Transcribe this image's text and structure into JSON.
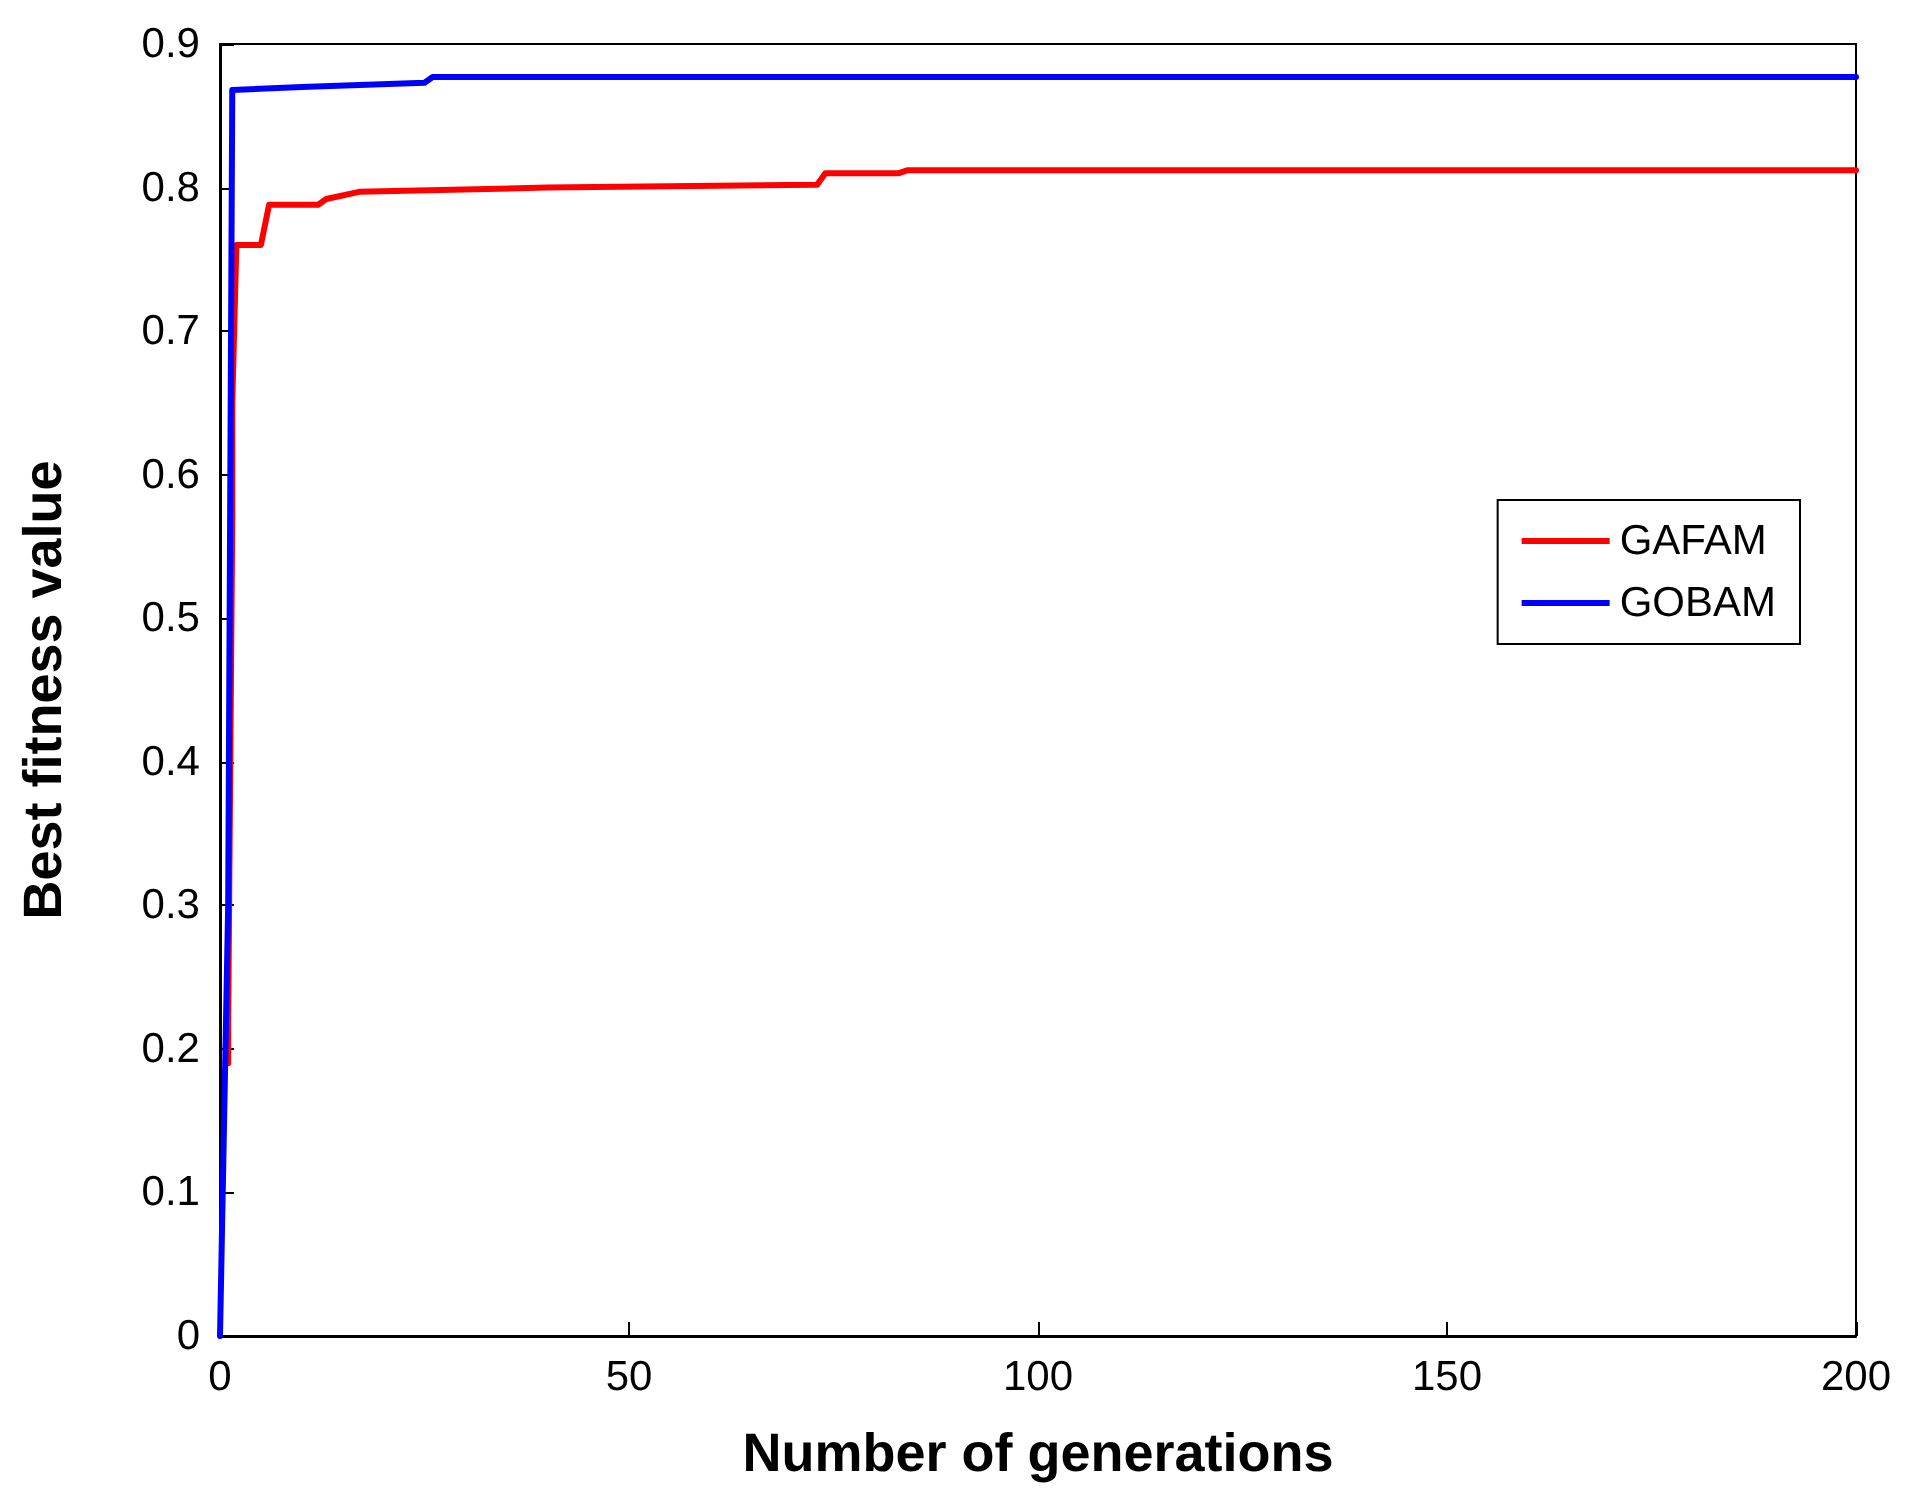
{
  "chart_data": {
    "type": "line",
    "xlabel": "Number of generations",
    "ylabel": "Best fitness value",
    "xlim": [
      0,
      200
    ],
    "xticks": [
      0,
      50,
      100,
      150,
      200
    ],
    "ylim": [
      0,
      0.9
    ],
    "yticks": [
      0,
      0.1,
      0.2,
      0.3,
      0.4,
      0.5,
      0.6,
      0.7,
      0.8,
      0.9
    ],
    "grid": false,
    "legend": "right",
    "marker": "none",
    "line_style": "solid",
    "series": [
      {
        "name": "GAFAM",
        "color": "#ff0000",
        "x": [
          1,
          1,
          1.5,
          1.5,
          2,
          5,
          6,
          12,
          13,
          17,
          40,
          73,
          74,
          83,
          84,
          200
        ],
        "values": [
          0.19,
          0.22,
          0.57,
          0.65,
          0.76,
          0.76,
          0.788,
          0.788,
          0.792,
          0.797,
          0.8,
          0.802,
          0.81,
          0.81,
          0.812,
          0.812
        ]
      },
      {
        "name": "GOBAM",
        "color": "#0000ff",
        "x": [
          0,
          1,
          1.5,
          10,
          25,
          26,
          200
        ],
        "values": [
          0,
          0.3,
          0.868,
          0.87,
          0.873,
          0.877,
          0.877
        ]
      }
    ]
  }
}
